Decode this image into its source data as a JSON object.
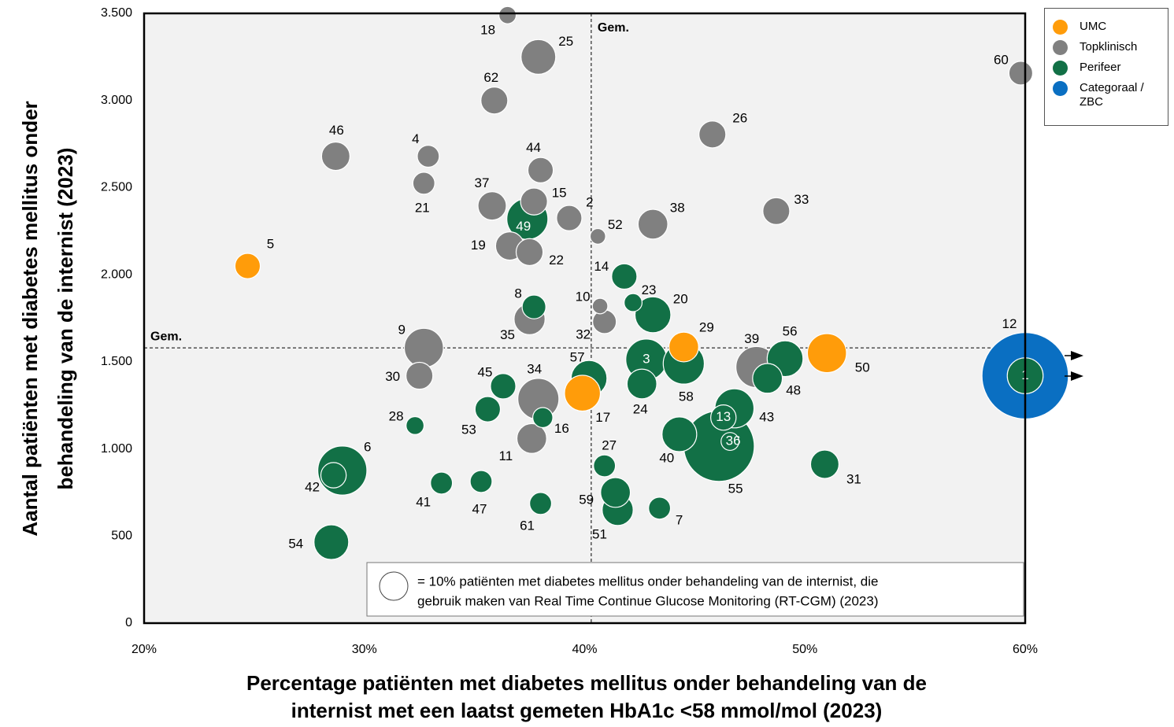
{
  "chart_data": {
    "type": "bubble",
    "x_label": [
      "Percentage patiënten met diabetes mellitus onder behandeling van de",
      "internist met een laatst gemeten HbA1c <58 mmol/mol (2023)"
    ],
    "y_label": [
      "Aantal patiënten met diabetes mellitus onder",
      "behandeling van de internist (2023)"
    ],
    "xlim": [
      20,
      60
    ],
    "xticks": [
      {
        "value": 20,
        "label": "20%"
      },
      {
        "value": 30,
        "label": "30%"
      },
      {
        "value": 40,
        "label": "40%"
      },
      {
        "value": 50,
        "label": "50%"
      },
      {
        "value": 60,
        "label": "60%"
      }
    ],
    "ylim": [
      0,
      3500
    ],
    "yticks": [
      0,
      500,
      {
        "value": 1000,
        "label": "1.000"
      },
      {
        "value": 1500,
        "label": "1.500"
      },
      {
        "value": 2000,
        "label": "2.000"
      },
      {
        "value": 2500,
        "label": "2.500"
      },
      {
        "value": 3000,
        "label": "3.000"
      },
      {
        "value": 3500,
        "label": "3.500"
      }
    ],
    "reference_lines": {
      "label": "Gem.",
      "x": 40.3,
      "y": 1580
    },
    "size_legend": {
      "value": 10,
      "text": [
        "= 10% patiënten met diabetes mellitus onder behandeling van de internist, die",
        "gebruik maken van Real Time Continue Glucose Monitoring (RT-CGM) (2023)"
      ]
    },
    "series": [
      {
        "name": "Topklinisch",
        "color": "#808080",
        "labels": [
          "18",
          "25",
          "62",
          "46",
          "4",
          "44",
          "21",
          "37",
          "15",
          "2",
          "52",
          "19",
          "22",
          "38",
          "26",
          "33",
          "60",
          "10",
          "32",
          "35",
          "9",
          "30",
          "34",
          "11",
          "39"
        ],
        "x": [
          36.5,
          37.9,
          35.9,
          28.7,
          32.9,
          38.0,
          32.7,
          35.8,
          37.7,
          39.3,
          40.6,
          36.6,
          37.5,
          43.1,
          45.8,
          48.7,
          59.8,
          40.7,
          40.9,
          37.5,
          32.7,
          32.5,
          37.9,
          37.6,
          47.8
        ],
        "values": [
          3490,
          3250,
          3000,
          2680,
          2680,
          2600,
          2525,
          2395,
          2420,
          2325,
          2220,
          2165,
          2130,
          2290,
          2805,
          2365,
          3157,
          1820,
          1730,
          1745,
          1580,
          1420,
          1287,
          1060,
          1470
        ],
        "sizes": [
          3.7,
          15,
          9,
          10,
          6,
          8,
          6,
          10,
          9,
          8,
          3,
          10,
          9,
          11,
          9,
          9,
          7,
          3,
          7,
          12,
          19,
          9,
          21,
          11,
          21
        ]
      },
      {
        "name": "Perifeer",
        "color": "#127046",
        "labels": [
          "49",
          "14",
          "23",
          "8",
          "20",
          "57",
          "3",
          "58",
          "56",
          "48",
          "24",
          "45",
          "53",
          "16",
          "28",
          "43",
          "13",
          "36",
          "55",
          "40",
          "6",
          "42",
          "27",
          "31",
          "41",
          "47",
          "59",
          "51",
          "61",
          "7",
          "54",
          "1"
        ],
        "x": [
          37.4,
          41.8,
          42.2,
          37.7,
          43.1,
          40.2,
          42.8,
          44.5,
          49.1,
          48.3,
          42.6,
          36.3,
          35.6,
          38.1,
          32.3,
          46.8,
          46.3,
          46.6,
          46.1,
          44.3,
          29.0,
          28.6,
          40.9,
          50.9,
          33.5,
          35.3,
          41.4,
          41.5,
          38.0,
          43.4,
          28.5,
          60
        ],
        "values": [
          2320,
          1990,
          1840,
          1815,
          1770,
          1405,
          1513,
          1490,
          1518,
          1405,
          1373,
          1360,
          1228,
          1180,
          1134,
          1233,
          1180,
          1043,
          1016,
          1084,
          876,
          849,
          903,
          912,
          804,
          813,
          750,
          650,
          687,
          660,
          465,
          1420
        ],
        "sizes": [
          21,
          8,
          4,
          7,
          16,
          16,
          21,
          21,
          16,
          11,
          11,
          8,
          8,
          5,
          4,
          19,
          8,
          4,
          62,
          15,
          30,
          8,
          6,
          10,
          6,
          6,
          11,
          12,
          6,
          6,
          15,
          16
        ]
      },
      {
        "name": "UMC",
        "color": "#ff9c0a",
        "labels": [
          "5",
          "29",
          "17",
          "50"
        ],
        "x": [
          24.7,
          44.5,
          39.9,
          51.0
        ],
        "values": [
          2050,
          1585,
          1320,
          1550
        ],
        "sizes": [
          8,
          11,
          16,
          19
        ]
      },
      {
        "name": "Categoraal / ZBC",
        "color": "#0a6fc2",
        "labels": [
          "12"
        ],
        "x": [
          60
        ],
        "values": [
          1420
        ],
        "sizes": [
          93
        ]
      }
    ]
  }
}
